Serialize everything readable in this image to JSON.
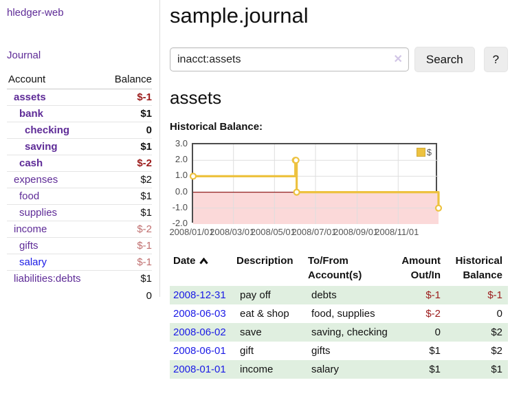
{
  "app": {
    "brand": "hledger-web"
  },
  "sidebar": {
    "journal_link": "Journal",
    "accounts_header": {
      "account": "Account",
      "balance": "Balance"
    },
    "accounts": [
      {
        "name": "assets",
        "depth": 1,
        "bold": true,
        "balance": "$-1",
        "balance_style": "negstrong"
      },
      {
        "name": "bank",
        "depth": 2,
        "bold": true,
        "balance": "$1",
        "balance_style": "strong"
      },
      {
        "name": "checking",
        "depth": 3,
        "bold": true,
        "balance": "0",
        "balance_style": "strong"
      },
      {
        "name": "saving",
        "depth": 3,
        "bold": true,
        "balance": "$1",
        "balance_style": "strong"
      },
      {
        "name": "cash",
        "depth": 2,
        "bold": true,
        "balance": "$-2",
        "balance_style": "negstrong"
      },
      {
        "name": "expenses",
        "depth": 1,
        "bold": false,
        "balance": "$2",
        "balance_style": "normal"
      },
      {
        "name": "food",
        "depth": 2,
        "bold": false,
        "balance": "$1",
        "balance_style": "normal"
      },
      {
        "name": "supplies",
        "depth": 2,
        "bold": false,
        "balance": "$1",
        "balance_style": "normal"
      },
      {
        "name": "income",
        "depth": 1,
        "bold": false,
        "balance": "$-2",
        "balance_style": "negsoft"
      },
      {
        "name": "gifts",
        "depth": 2,
        "bold": false,
        "balance": "$-1",
        "balance_style": "negsoft"
      },
      {
        "name": "salary",
        "depth": 2,
        "bold": false,
        "balance": "$-1",
        "balance_style": "negsoft",
        "unvisited": true
      },
      {
        "name": "liabilities:debts",
        "depth": 1,
        "bold": false,
        "balance": "$1",
        "balance_style": "normal"
      }
    ],
    "total": "0"
  },
  "header": {
    "title": "sample.journal"
  },
  "search": {
    "value": "inacct:assets",
    "clear_icon": "✕",
    "button_label": "Search",
    "help_label": "?"
  },
  "account_page": {
    "title": "assets",
    "chart_label": "Historical Balance:"
  },
  "chart_data": {
    "type": "line",
    "step": true,
    "title": "Historical Balance:",
    "series": [
      {
        "name": "$",
        "color": "#edc240",
        "points": [
          {
            "date": "2008-01-01",
            "value": 1
          },
          {
            "date": "2008-06-01",
            "value": 2
          },
          {
            "date": "2008-06-02",
            "value": 2
          },
          {
            "date": "2008-06-03",
            "value": 0
          },
          {
            "date": "2008-12-31",
            "value": -1
          }
        ]
      }
    ],
    "x_range": [
      "2008-01-01",
      "2008-12-31"
    ],
    "ylim": [
      -2,
      3
    ],
    "y_ticks": [
      "3.0",
      "2.0",
      "1.0",
      "0.0",
      "-1.0",
      "-2.0"
    ],
    "x_ticks": [
      "2008/01/01",
      "2008/03/01",
      "2008/05/01",
      "2008/07/01",
      "2008/09/01",
      "2008/11/01"
    ],
    "legend": {
      "label": "$",
      "position": "top-right"
    },
    "grid": true,
    "negative_region_color": "#fbd9d9",
    "zero_line_color": "#8f2020",
    "grid_color": "#dedede"
  },
  "register": {
    "columns": [
      "Date",
      "Description",
      "To/From Account(s)",
      "Amount Out/In",
      "Historical Balance"
    ],
    "sort": {
      "column": "Date",
      "direction": "ascending"
    },
    "rows": [
      {
        "date": "2008-12-31",
        "description": "pay off",
        "accounts": "debts",
        "amount": "$-1",
        "amount_neg": true,
        "balance": "$-1",
        "balance_neg": true
      },
      {
        "date": "2008-06-03",
        "description": "eat & shop",
        "accounts": "food, supplies",
        "amount": "$-2",
        "amount_neg": true,
        "balance": "0",
        "balance_neg": false
      },
      {
        "date": "2008-06-02",
        "description": "save",
        "accounts": "saving, checking",
        "amount": "0",
        "amount_neg": false,
        "balance": "$2",
        "balance_neg": false
      },
      {
        "date": "2008-06-01",
        "description": "gift",
        "accounts": "gifts",
        "amount": "$1",
        "amount_neg": false,
        "balance": "$2",
        "balance_neg": false
      },
      {
        "date": "2008-01-01",
        "description": "income",
        "accounts": "salary",
        "amount": "$1",
        "amount_neg": false,
        "balance": "$1",
        "balance_neg": false
      }
    ]
  },
  "colors": {
    "link_purple": "#5e2b97",
    "link_blue": "#1a1ae6",
    "negative_strong": "#9b1b1b",
    "negative_soft": "#c06f6f",
    "row_stripe_green": "#e0efe0",
    "chart_yellow": "#edc240",
    "chart_negative_fill": "#fbd9d9",
    "chart_zero_line": "#8f2020"
  }
}
